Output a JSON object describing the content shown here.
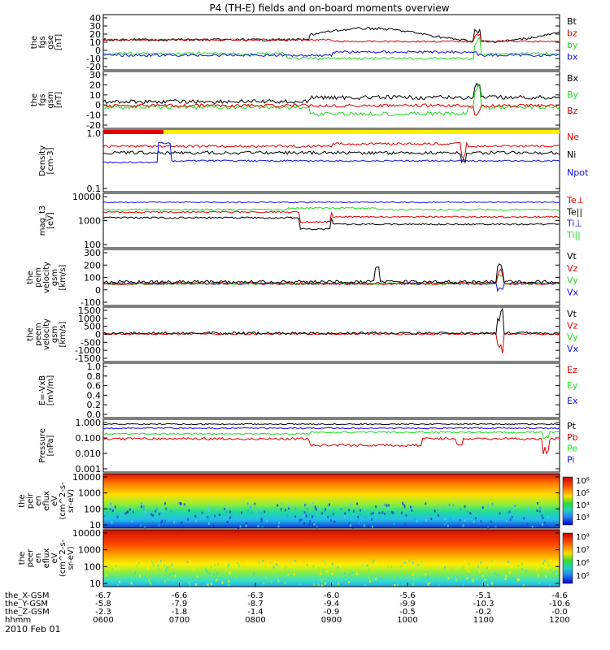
{
  "title": "P4 (TH-E) fields and on-board moments overview",
  "date_label": "2010 Feb 01",
  "colors": {
    "black": "#000000",
    "red": "#e00000",
    "green": "#22dd22",
    "blue": "#1010e0",
    "yellow": "#ffee00"
  },
  "panels": [
    {
      "id": "fgs_gse",
      "ylabel": [
        "the",
        "fgs",
        "gse",
        "[nT]"
      ],
      "ticks": [
        "40",
        "30",
        "20",
        "10",
        "0",
        "-10",
        "-20"
      ],
      "legend": [
        {
          "text": "Bt",
          "color": "#000000"
        },
        {
          "text": "bz",
          "color": "#e00000"
        },
        {
          "text": "by",
          "color": "#22dd22"
        },
        {
          "text": "bx",
          "color": "#1010e0"
        }
      ]
    },
    {
      "id": "fgs_gsm",
      "ylabel": [
        "the",
        "fgs",
        "gsm",
        "[nT]"
      ],
      "ticks": [
        "30",
        "20",
        "10",
        "0",
        "-10",
        "-20"
      ],
      "legend": [
        {
          "text": "Bx",
          "color": "#000000"
        },
        {
          "text": "By",
          "color": "#22dd22"
        },
        {
          "text": "Bz",
          "color": "#e00000"
        }
      ]
    },
    {
      "id": "density",
      "ylabel": [
        "Density",
        "[cm-3]"
      ],
      "ticks": [
        "1.0",
        "0.1"
      ],
      "legend": [
        {
          "text": "Ne",
          "color": "#e00000"
        },
        {
          "text": "Ni",
          "color": "#000000"
        },
        {
          "text": "Npot",
          "color": "#1010e0"
        }
      ]
    },
    {
      "id": "temp",
      "ylabel": [
        "mag_t3",
        "[eV]"
      ],
      "ticks": [
        "10000",
        "1000",
        "100"
      ],
      "legend": [
        {
          "text": "Te⊥",
          "color": "#e00000"
        },
        {
          "text": "Te||",
          "color": "#000000"
        },
        {
          "text": "Ti⊥",
          "color": "#1010e0"
        },
        {
          "text": "Ti||",
          "color": "#22dd22"
        }
      ]
    },
    {
      "id": "peim_vel",
      "ylabel": [
        "the",
        "peim",
        "velocity",
        "gsm",
        "[km/s]"
      ],
      "ticks": [
        "300",
        "200",
        "100",
        "0",
        "-100"
      ],
      "legend": [
        {
          "text": "Vt",
          "color": "#000000"
        },
        {
          "text": "Vz",
          "color": "#e00000"
        },
        {
          "text": "Vy",
          "color": "#22dd22"
        },
        {
          "text": "Vx",
          "color": "#1010e0"
        }
      ]
    },
    {
      "id": "peem_vel",
      "ylabel": [
        "the",
        "peem",
        "velocity",
        "gsm",
        "[km/s]"
      ],
      "ticks": [
        "1500",
        "1000",
        "500",
        "0",
        "-500",
        "-1000",
        "-1500"
      ],
      "legend": [
        {
          "text": "Vt",
          "color": "#000000"
        },
        {
          "text": "Vz",
          "color": "#e00000"
        },
        {
          "text": "Vy",
          "color": "#22dd22"
        },
        {
          "text": "Vx",
          "color": "#1010e0"
        }
      ]
    },
    {
      "id": "efield",
      "ylabel": [
        "E=-VxB",
        "[mV/m]"
      ],
      "ticks": [
        "1.0",
        "0.8",
        "0.6",
        "0.4",
        "0.2",
        "0.0"
      ],
      "legend": [
        {
          "text": "Ez",
          "color": "#e00000"
        },
        {
          "text": "Ey",
          "color": "#22dd22"
        },
        {
          "text": "Ex",
          "color": "#1010e0"
        }
      ]
    },
    {
      "id": "pressure",
      "ylabel": [
        "Pressure",
        "[nPa]"
      ],
      "ticks": [
        "1.000",
        "0.100",
        "0.010",
        "0.001"
      ],
      "legend": [
        {
          "text": "Pt",
          "color": "#000000"
        },
        {
          "text": "Pb",
          "color": "#e00000"
        },
        {
          "text": "Pe",
          "color": "#22dd22"
        },
        {
          "text": "Pi",
          "color": "#1010e0"
        }
      ]
    },
    {
      "id": "peir_spec",
      "ylabel": [
        "the",
        "peir",
        "en",
        "eflux",
        "eV",
        "(cm^2-s-",
        "sr-eV)"
      ],
      "ticks": [
        "10000",
        "1000",
        "100",
        "10"
      ],
      "colorbar": [
        "10⁶",
        "10⁵",
        "10⁴",
        "10³"
      ]
    },
    {
      "id": "peer_spec",
      "ylabel": [
        "the",
        "peer",
        "en",
        "eflux",
        "eV",
        "(cm^2-s-",
        "sr-eV)"
      ],
      "ticks": [
        "10000",
        "1000",
        "100",
        "10"
      ],
      "colorbar": [
        "10⁸",
        "10⁷",
        "10⁶",
        "10⁵"
      ]
    }
  ],
  "xaxis": {
    "rows": [
      {
        "name": "the_X-GSM",
        "values": [
          "-6.7",
          "-6.6",
          "-6.3",
          "-6.0",
          "-5.6",
          "-5.1",
          "-4.6"
        ]
      },
      {
        "name": "the_Y-GSM",
        "values": [
          "-5.8",
          "-7.9",
          "-8.7",
          "-9.4",
          "-9.9",
          "-10.3",
          "-10.6"
        ]
      },
      {
        "name": "the_Z-GSM",
        "values": [
          "-2.3",
          "-1.8",
          "-1.4",
          "-0.9",
          "-0.5",
          "-0.2",
          "-0.0"
        ]
      },
      {
        "name": "hhmm",
        "values": [
          "0600",
          "0700",
          "0800",
          "0900",
          "1000",
          "1100",
          "1200"
        ]
      }
    ]
  },
  "chart_data": {
    "type": "line",
    "title": "P4 (TH-E) fields and on-board moments overview",
    "x": [
      "0600",
      "0700",
      "0800",
      "0900",
      "1000",
      "1100",
      "1200"
    ],
    "series": [
      {
        "name": "Bt",
        "values": [
          14,
          14,
          13,
          18,
          21,
          24,
          14
        ]
      },
      {
        "name": "bz",
        "values": [
          13,
          12,
          12,
          14,
          15,
          16,
          10
        ]
      },
      {
        "name": "by",
        "values": [
          -3,
          -2,
          -4,
          -8,
          -10,
          -6,
          0
        ]
      },
      {
        "name": "bx",
        "values": [
          -2,
          -2,
          -2,
          -4,
          -3,
          -2,
          1
        ]
      },
      {
        "name": "Ne",
        "values": [
          0.6,
          0.7,
          0.65,
          0.55,
          0.7,
          0.6,
          0.6
        ]
      },
      {
        "name": "Ni",
        "values": [
          0.45,
          0.45,
          0.45,
          0.4,
          0.5,
          0.4,
          0.4
        ]
      },
      {
        "name": "Ti⊥",
        "values": [
          6000,
          6200,
          6500,
          6500,
          6800,
          6800,
          6500
        ]
      },
      {
        "name": "Te||",
        "values": [
          1800,
          1700,
          1500,
          700,
          1100,
          1500,
          1400
        ]
      }
    ]
  }
}
